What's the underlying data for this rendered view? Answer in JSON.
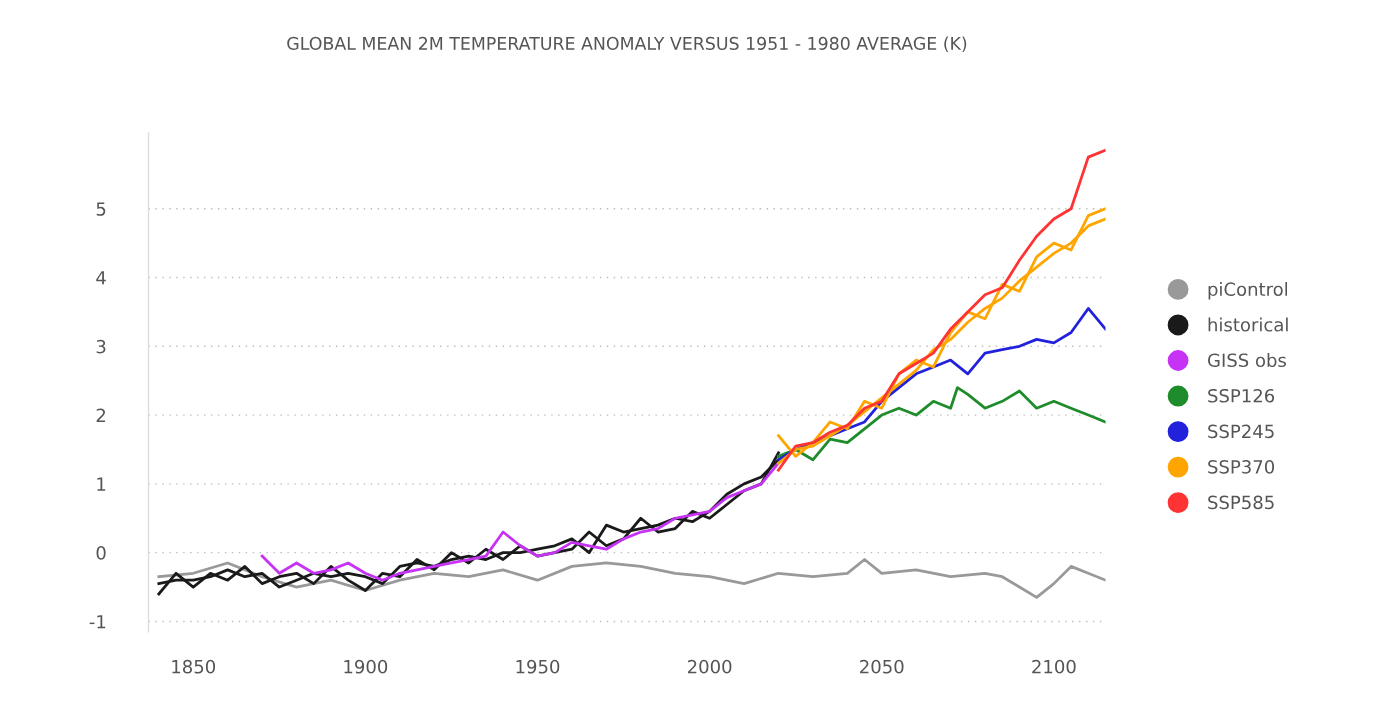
{
  "chart_data": {
    "type": "line",
    "title": "GLOBAL MEAN 2M TEMPERATURE ANOMALY VERSUS 1951 - 1980 AVERAGE (K)",
    "xlim": [
      1837,
      2115
    ],
    "xticks": [
      1850,
      1900,
      1950,
      2000,
      2050,
      2100
    ],
    "ylim": [
      -1.15,
      6.1
    ],
    "yticks": [
      -1,
      0,
      1,
      2,
      3,
      4,
      5
    ],
    "grid": "y",
    "legend": "right",
    "marker": "none",
    "line_style": "solid",
    "series": [
      {
        "name": "piControl",
        "color": "#999999",
        "x": [
          1840,
          1850,
          1860,
          1870,
          1880,
          1890,
          1900,
          1910,
          1920,
          1930,
          1940,
          1950,
          1960,
          1970,
          1980,
          1990,
          2000,
          2010,
          2020,
          2030,
          2040,
          2045,
          2050,
          2060,
          2070,
          2080,
          2085,
          2090,
          2095,
          2100,
          2105,
          2110,
          2115
        ],
        "values": [
          -0.35,
          -0.3,
          -0.15,
          -0.35,
          -0.5,
          -0.4,
          -0.55,
          -0.4,
          -0.3,
          -0.35,
          -0.25,
          -0.4,
          -0.2,
          -0.15,
          -0.2,
          -0.3,
          -0.35,
          -0.45,
          -0.3,
          -0.35,
          -0.3,
          -0.1,
          -0.3,
          -0.25,
          -0.35,
          -0.3,
          -0.35,
          -0.5,
          -0.65,
          -0.45,
          -0.2,
          -0.3,
          -0.4
        ]
      },
      {
        "name": "historical",
        "color": "#1a1a1a",
        "x": [
          1840,
          1845,
          1850,
          1855,
          1860,
          1865,
          1870,
          1875,
          1880,
          1885,
          1890,
          1895,
          1900,
          1905,
          1910,
          1915,
          1920,
          1925,
          1930,
          1935,
          1940,
          1945,
          1950,
          1955,
          1960,
          1965,
          1970,
          1975,
          1980,
          1985,
          1990,
          1995,
          2000,
          2005,
          2010,
          2015,
          2020
        ],
        "values": [
          -0.45,
          -0.4,
          -0.4,
          -0.35,
          -0.25,
          -0.35,
          -0.3,
          -0.5,
          -0.4,
          -0.3,
          -0.35,
          -0.3,
          -0.35,
          -0.45,
          -0.2,
          -0.15,
          -0.2,
          -0.1,
          -0.05,
          -0.1,
          0.0,
          0.0,
          0.05,
          0.1,
          0.2,
          0.0,
          0.4,
          0.3,
          0.35,
          0.4,
          0.5,
          0.45,
          0.6,
          0.85,
          1.0,
          1.1,
          1.35
        ]
      },
      {
        "color": "#1a1a1a",
        "x": [
          1840,
          1845,
          1850,
          1855,
          1860,
          1865,
          1870,
          1875,
          1880,
          1885,
          1890,
          1895,
          1900,
          1905,
          1910,
          1915,
          1920,
          1925,
          1930,
          1935,
          1940,
          1945,
          1950,
          1955,
          1960,
          1965,
          1970,
          1975,
          1980,
          1985,
          1990,
          1995,
          2000,
          2005,
          2010,
          2015,
          2020
        ],
        "values": [
          -0.6,
          -0.3,
          -0.5,
          -0.3,
          -0.4,
          -0.2,
          -0.45,
          -0.35,
          -0.3,
          -0.45,
          -0.2,
          -0.4,
          -0.55,
          -0.3,
          -0.35,
          -0.1,
          -0.25,
          0.0,
          -0.15,
          0.05,
          -0.1,
          0.1,
          -0.05,
          0.0,
          0.05,
          0.3,
          0.1,
          0.2,
          0.5,
          0.3,
          0.35,
          0.6,
          0.5,
          0.7,
          0.9,
          1.0,
          1.45
        ]
      },
      {
        "name": "GISS obs",
        "color": "#c633f5",
        "x": [
          1870,
          1875,
          1880,
          1885,
          1890,
          1895,
          1900,
          1905,
          1910,
          1915,
          1920,
          1925,
          1930,
          1935,
          1940,
          1945,
          1950,
          1955,
          1960,
          1965,
          1970,
          1975,
          1980,
          1985,
          1990,
          1995,
          2000,
          2005,
          2010,
          2015,
          2020
        ],
        "values": [
          -0.05,
          -0.3,
          -0.15,
          -0.3,
          -0.25,
          -0.15,
          -0.3,
          -0.4,
          -0.3,
          -0.25,
          -0.2,
          -0.15,
          -0.1,
          -0.05,
          0.3,
          0.1,
          -0.05,
          0.0,
          0.15,
          0.1,
          0.05,
          0.2,
          0.3,
          0.35,
          0.5,
          0.55,
          0.6,
          0.8,
          0.9,
          1.0,
          1.3
        ]
      },
      {
        "name": "SSP126",
        "color": "#1e8c2a",
        "x": [
          2020,
          2025,
          2030,
          2035,
          2040,
          2045,
          2050,
          2055,
          2060,
          2065,
          2070,
          2072,
          2075,
          2080,
          2085,
          2090,
          2095,
          2100,
          2105,
          2110,
          2115
        ],
        "values": [
          1.4,
          1.5,
          1.35,
          1.65,
          1.6,
          1.8,
          2.0,
          2.1,
          2.0,
          2.2,
          2.1,
          2.4,
          2.3,
          2.1,
          2.2,
          2.35,
          2.1,
          2.2,
          2.1,
          2.0,
          1.9
        ]
      },
      {
        "name": "SSP245",
        "color": "#2222dd",
        "x": [
          2020,
          2025,
          2030,
          2035,
          2040,
          2045,
          2050,
          2055,
          2060,
          2065,
          2070,
          2075,
          2080,
          2085,
          2090,
          2095,
          2100,
          2105,
          2110,
          2115
        ],
        "values": [
          1.35,
          1.5,
          1.6,
          1.7,
          1.8,
          1.9,
          2.2,
          2.4,
          2.6,
          2.7,
          2.8,
          2.6,
          2.9,
          2.95,
          3.0,
          3.1,
          3.05,
          3.2,
          3.55,
          3.25
        ]
      },
      {
        "name": "SSP370",
        "color": "#ffa500",
        "x": [
          2020,
          2025,
          2030,
          2035,
          2040,
          2045,
          2050,
          2055,
          2060,
          2065,
          2070,
          2075,
          2080,
          2085,
          2090,
          2095,
          2100,
          2105,
          2110,
          2115
        ],
        "values": [
          1.3,
          1.5,
          1.55,
          1.7,
          1.85,
          2.05,
          2.25,
          2.45,
          2.65,
          2.95,
          3.1,
          3.35,
          3.55,
          3.7,
          3.95,
          4.15,
          4.35,
          4.5,
          4.75,
          4.85
        ]
      },
      {
        "color": "#ffa500",
        "x": [
          2020,
          2025,
          2030,
          2035,
          2040,
          2045,
          2050,
          2055,
          2060,
          2065,
          2070,
          2075,
          2080,
          2085,
          2090,
          2095,
          2100,
          2105,
          2110,
          2115
        ],
        "values": [
          1.7,
          1.4,
          1.6,
          1.9,
          1.8,
          2.2,
          2.1,
          2.6,
          2.8,
          2.7,
          3.2,
          3.5,
          3.4,
          3.9,
          3.8,
          4.3,
          4.5,
          4.4,
          4.9,
          5.0
        ]
      },
      {
        "name": "SSP585",
        "color": "#ff3333",
        "x": [
          2020,
          2025,
          2030,
          2035,
          2040,
          2045,
          2050,
          2055,
          2060,
          2065,
          2070,
          2075,
          2080,
          2085,
          2090,
          2095,
          2100,
          2105,
          2110,
          2115
        ],
        "values": [
          1.2,
          1.55,
          1.6,
          1.75,
          1.85,
          2.1,
          2.2,
          2.6,
          2.75,
          2.9,
          3.25,
          3.5,
          3.75,
          3.85,
          4.25,
          4.6,
          4.85,
          5.0,
          5.75,
          5.85
        ]
      }
    ]
  }
}
